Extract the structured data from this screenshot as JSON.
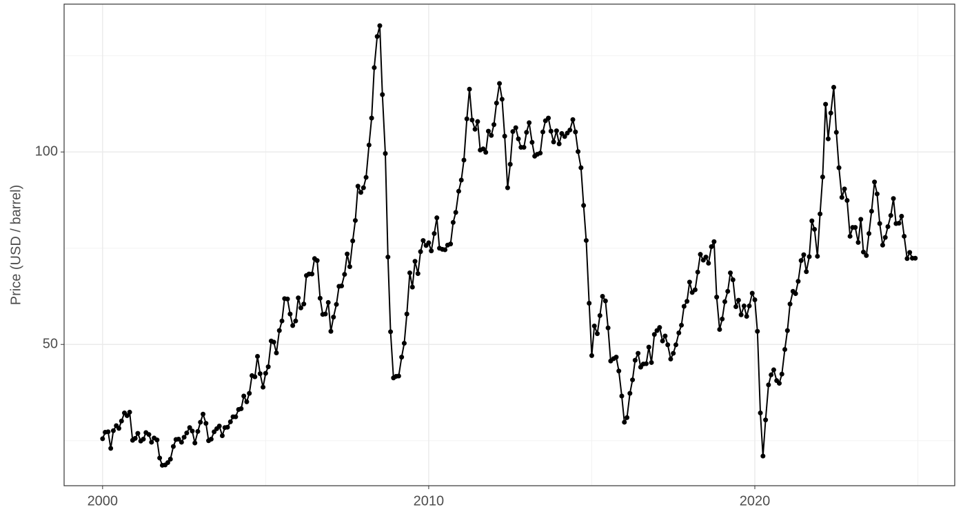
{
  "chart_data": {
    "type": "line",
    "y_label": "Price (USD / barrel)",
    "color": "#000000",
    "grid": true,
    "xlim": [
      1998.82,
      2026.13
    ],
    "xticks": [
      2000,
      2010,
      2020
    ],
    "minor_xticks": [
      2005,
      2015,
      2025
    ],
    "ylim": [
      13.3,
      138.4
    ],
    "yticks": [
      50,
      100
    ],
    "minor_yticks": [
      25,
      75,
      125
    ],
    "x": [
      2000,
      2000.08,
      2000.17,
      2000.25,
      2000.33,
      2000.42,
      2000.5,
      2000.58,
      2000.67,
      2000.75,
      2000.83,
      2000.92,
      2001,
      2001.08,
      2001.17,
      2001.25,
      2001.33,
      2001.42,
      2001.5,
      2001.58,
      2001.67,
      2001.75,
      2001.83,
      2001.92,
      2002,
      2002.08,
      2002.17,
      2002.25,
      2002.33,
      2002.42,
      2002.5,
      2002.58,
      2002.67,
      2002.75,
      2002.83,
      2002.92,
      2003,
      2003.08,
      2003.17,
      2003.25,
      2003.33,
      2003.42,
      2003.5,
      2003.58,
      2003.67,
      2003.75,
      2003.83,
      2003.92,
      2004,
      2004.08,
      2004.17,
      2004.25,
      2004.33,
      2004.42,
      2004.5,
      2004.58,
      2004.67,
      2004.75,
      2004.83,
      2004.92,
      2005,
      2005.08,
      2005.17,
      2005.25,
      2005.33,
      2005.42,
      2005.5,
      2005.58,
      2005.67,
      2005.75,
      2005.83,
      2005.92,
      2006,
      2006.08,
      2006.17,
      2006.25,
      2006.33,
      2006.42,
      2006.5,
      2006.58,
      2006.67,
      2006.75,
      2006.83,
      2006.92,
      2007,
      2007.08,
      2007.17,
      2007.25,
      2007.33,
      2007.42,
      2007.5,
      2007.58,
      2007.67,
      2007.75,
      2007.83,
      2007.92,
      2008,
      2008.08,
      2008.17,
      2008.25,
      2008.33,
      2008.42,
      2008.5,
      2008.58,
      2008.67,
      2008.75,
      2008.83,
      2008.92,
      2009,
      2009.08,
      2009.17,
      2009.25,
      2009.33,
      2009.42,
      2009.5,
      2009.58,
      2009.67,
      2009.75,
      2009.83,
      2009.92,
      2010,
      2010.08,
      2010.17,
      2010.25,
      2010.33,
      2010.42,
      2010.5,
      2010.58,
      2010.67,
      2010.75,
      2010.83,
      2010.92,
      2011,
      2011.08,
      2011.17,
      2011.25,
      2011.33,
      2011.42,
      2011.5,
      2011.58,
      2011.67,
      2011.75,
      2011.83,
      2011.92,
      2012,
      2012.08,
      2012.17,
      2012.25,
      2012.33,
      2012.42,
      2012.5,
      2012.58,
      2012.67,
      2012.75,
      2012.83,
      2012.92,
      2013,
      2013.08,
      2013.17,
      2013.25,
      2013.33,
      2013.42,
      2013.5,
      2013.58,
      2013.67,
      2013.75,
      2013.83,
      2013.92,
      2014,
      2014.08,
      2014.17,
      2014.25,
      2014.33,
      2014.42,
      2014.5,
      2014.58,
      2014.67,
      2014.75,
      2014.83,
      2014.92,
      2015,
      2015.08,
      2015.17,
      2015.25,
      2015.33,
      2015.42,
      2015.5,
      2015.58,
      2015.67,
      2015.75,
      2015.83,
      2015.92,
      2016,
      2016.08,
      2016.17,
      2016.25,
      2016.33,
      2016.42,
      2016.5,
      2016.58,
      2016.67,
      2016.75,
      2016.83,
      2016.92,
      2017,
      2017.08,
      2017.17,
      2017.25,
      2017.33,
      2017.42,
      2017.5,
      2017.58,
      2017.67,
      2017.75,
      2017.83,
      2017.92,
      2018,
      2018.08,
      2018.17,
      2018.25,
      2018.33,
      2018.42,
      2018.5,
      2018.58,
      2018.67,
      2018.75,
      2018.83,
      2018.92,
      2019,
      2019.08,
      2019.17,
      2019.25,
      2019.33,
      2019.42,
      2019.5,
      2019.58,
      2019.67,
      2019.75,
      2019.83,
      2019.92,
      2020,
      2020.08,
      2020.17,
      2020.25,
      2020.33,
      2020.42,
      2020.5,
      2020.58,
      2020.67,
      2020.75,
      2020.83,
      2020.92,
      2021,
      2021.08,
      2021.17,
      2021.25,
      2021.33,
      2021.42,
      2021.5,
      2021.58,
      2021.67,
      2021.75,
      2021.83,
      2021.92,
      2022,
      2022.08,
      2022.17,
      2022.25,
      2022.33,
      2022.42,
      2022.5,
      2022.58,
      2022.67,
      2022.75,
      2022.83,
      2022.92,
      2023,
      2023.08,
      2023.17,
      2023.25,
      2023.33,
      2023.42,
      2023.5,
      2023.58,
      2023.67,
      2023.75,
      2023.83,
      2023.92,
      2024,
      2024.08,
      2024.17,
      2024.25,
      2024.33,
      2024.42,
      2024.5,
      2024.58,
      2024.67,
      2024.75,
      2024.83,
      2024.92
    ],
    "values": [
      25.5,
      27.2,
      27.3,
      23.0,
      27.6,
      28.9,
      28.2,
      30.1,
      32.2,
      31.5,
      32.4,
      25.1,
      25.6,
      26.9,
      24.9,
      25.4,
      27.1,
      26.6,
      24.6,
      25.7,
      25.2,
      20.5,
      18.6,
      18.7,
      19.3,
      20.2,
      23.5,
      25.3,
      25.4,
      24.6,
      25.9,
      27.0,
      28.4,
      27.5,
      24.4,
      27.4,
      29.8,
      31.9,
      29.5,
      25.0,
      25.4,
      27.3,
      28.1,
      28.8,
      26.3,
      28.4,
      28.5,
      29.9,
      31.2,
      31.2,
      33.1,
      33.3,
      36.6,
      35.1,
      37.3,
      41.9,
      41.6,
      46.9,
      42.4,
      38.9,
      42.5,
      44.2,
      50.9,
      50.6,
      47.8,
      53.6,
      56.1,
      61.9,
      61.8,
      57.9,
      54.9,
      56.1,
      62.1,
      59.5,
      60.5,
      67.9,
      68.3,
      68.3,
      72.3,
      71.8,
      62.0,
      57.8,
      57.9,
      60.9,
      53.4,
      57.1,
      60.4,
      65.1,
      65.2,
      68.2,
      73.5,
      70.2,
      76.9,
      82.2,
      91.1,
      89.5,
      90.7,
      93.4,
      101.8,
      108.8,
      121.9,
      130.0,
      132.8,
      114.9,
      99.6,
      72.7,
      53.3,
      41.3,
      41.7,
      41.8,
      46.7,
      50.3,
      57.9,
      68.6,
      64.9,
      71.6,
      68.4,
      74.1,
      77.0,
      75.7,
      76.4,
      74.3,
      78.8,
      82.9,
      75.0,
      74.7,
      74.6,
      75.8,
      76.1,
      81.7,
      84.3,
      89.8,
      92.7,
      97.9,
      108.6,
      116.3,
      108.3,
      105.9,
      107.9,
      100.5,
      100.8,
      99.9,
      105.4,
      104.3,
      107.1,
      112.7,
      117.8,
      113.7,
      104.1,
      90.7,
      96.8,
      105.3,
      106.3,
      103.4,
      101.2,
      101.2,
      105.1,
      107.6,
      102.5,
      98.9,
      99.4,
      99.7,
      105.2,
      108.1,
      108.8,
      105.4,
      102.6,
      105.5,
      102.1,
      104.8,
      104.0,
      104.9,
      105.7,
      108.4,
      105.2,
      100.1,
      95.9,
      86.1,
      77.0,
      60.7,
      47.1,
      54.8,
      52.8,
      57.5,
      62.5,
      61.3,
      54.3,
      45.7,
      46.3,
      46.7,
      43.1,
      36.6,
      29.8,
      31.0,
      37.3,
      40.8,
      45.9,
      47.7,
      44.1,
      44.9,
      45.0,
      49.3,
      45.3,
      52.6,
      53.6,
      54.4,
      50.9,
      52.2,
      49.9,
      46.2,
      47.7,
      49.9,
      53.0,
      55.0,
      59.9,
      61.2,
      66.2,
      63.5,
      64.2,
      68.8,
      73.4,
      71.9,
      72.7,
      71.1,
      75.4,
      76.7,
      62.3,
      53.9,
      56.6,
      61.1,
      63.8,
      68.6,
      66.8,
      59.8,
      61.5,
      57.7,
      60.0,
      57.3,
      60.0,
      63.3,
      61.6,
      53.4,
      32.2,
      21.0,
      30.4,
      39.5,
      42.1,
      43.4,
      40.6,
      39.9,
      42.3,
      48.7,
      53.6,
      60.5,
      63.8,
      63.2,
      66.4,
      71.8,
      73.3,
      68.9,
      72.8,
      82.1,
      79.9,
      72.9,
      83.9,
      93.5,
      112.4,
      103.4,
      110.1,
      116.8,
      105.1,
      95.9,
      88.2,
      90.4,
      87.4,
      78.1,
      80.4,
      80.4,
      76.5,
      82.5,
      74.0,
      73.1,
      78.8,
      84.6,
      92.2,
      89.1,
      81.4,
      75.8,
      77.8,
      80.6,
      83.5,
      87.9,
      81.4,
      81.5,
      83.3,
      78.1,
      72.3,
      73.9,
      72.4,
      72.4
    ]
  }
}
